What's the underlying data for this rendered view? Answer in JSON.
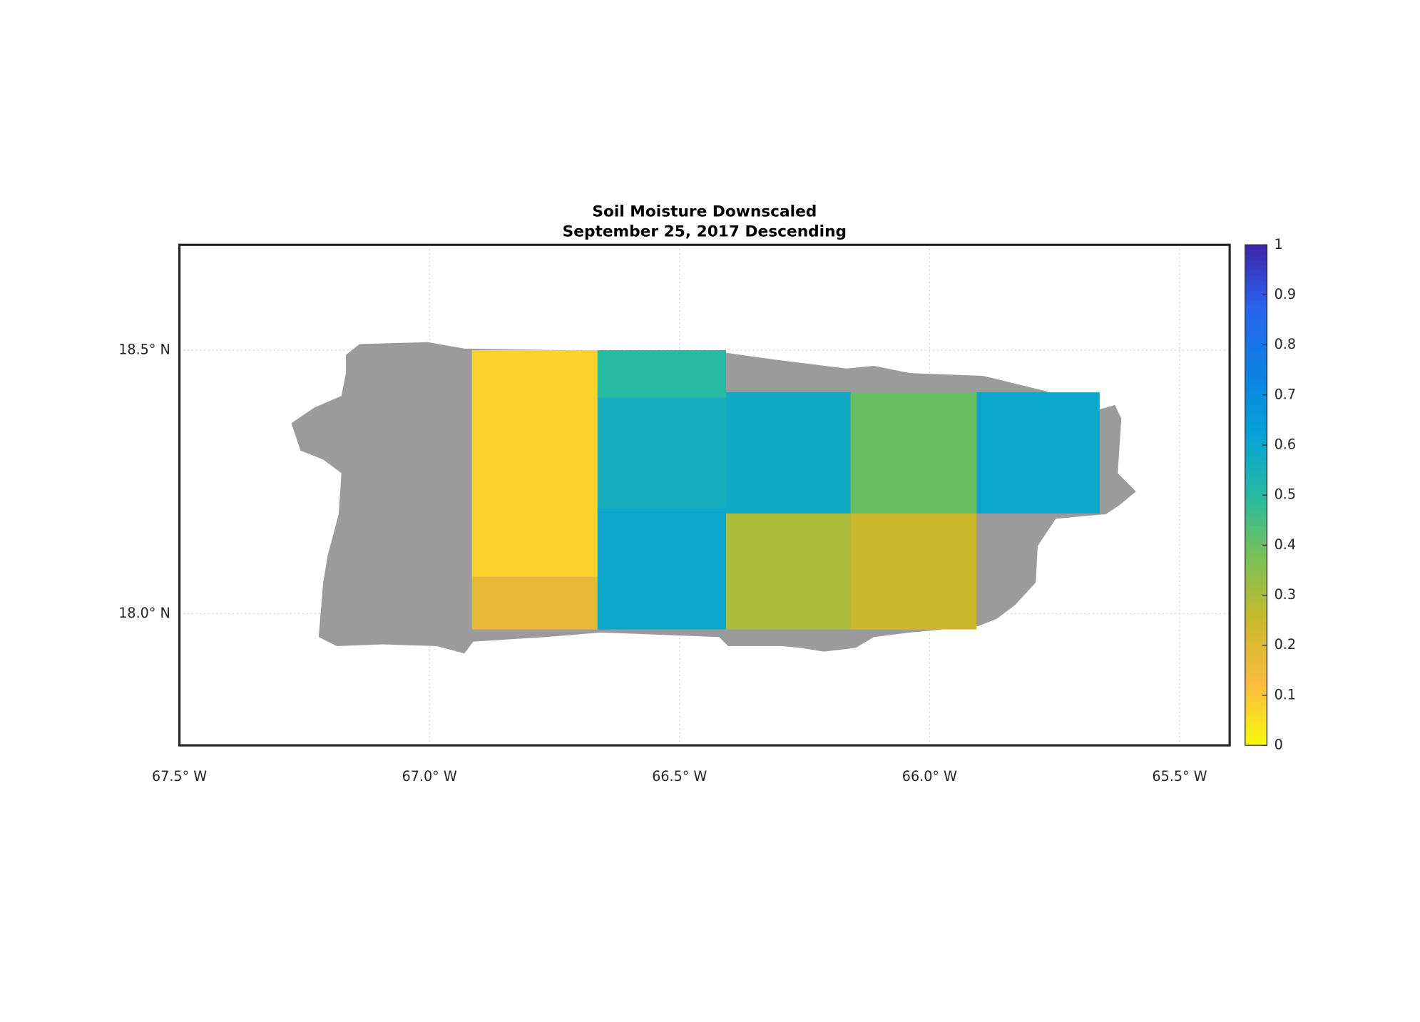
{
  "chart_data": {
    "type": "map",
    "title": "Soil Moisture Downscaled",
    "subtitle": "September 25, 2017 Descending",
    "xlim": [
      -67.5,
      -65.4
    ],
    "ylim": [
      17.75,
      18.7
    ],
    "xticks": [
      {
        "value": -67.5,
        "label": "67.5° W"
      },
      {
        "value": -67.0,
        "label": "67.0° W"
      },
      {
        "value": -66.5,
        "label": "66.5° W"
      },
      {
        "value": -66.0,
        "label": "66.0° W"
      },
      {
        "value": -65.5,
        "label": "65.5° W"
      }
    ],
    "yticks": [
      {
        "value": 18.0,
        "label": "18.0° N"
      },
      {
        "value": 18.5,
        "label": "18.5° N"
      }
    ],
    "grid": true,
    "colormap": "parula",
    "clim": [
      0,
      1
    ],
    "cticks": [
      0,
      0.1,
      0.2,
      0.3,
      0.4,
      0.5,
      0.6,
      0.7,
      0.8,
      0.9,
      1
    ],
    "cells": [
      {
        "lon": [
          -66.915,
          -66.664
        ],
        "lat": [
          18.07,
          18.5
        ],
        "value": 0.08
      },
      {
        "lon": [
          -66.915,
          -66.664
        ],
        "lat": [
          17.97,
          18.07
        ],
        "value": 0.18
      },
      {
        "lon": [
          -66.664,
          -66.407
        ],
        "lat": [
          18.41,
          18.5
        ],
        "value": 0.5
      },
      {
        "lon": [
          -66.664,
          -66.407
        ],
        "lat": [
          18.2,
          18.41
        ],
        "value": 0.56
      },
      {
        "lon": [
          -66.664,
          -66.407
        ],
        "lat": [
          17.97,
          18.2
        ],
        "value": 0.6
      },
      {
        "lon": [
          -66.407,
          -66.158
        ],
        "lat": [
          18.19,
          18.42
        ],
        "value": 0.58
      },
      {
        "lon": [
          -66.158,
          -65.906
        ],
        "lat": [
          18.19,
          18.42
        ],
        "value": 0.4
      },
      {
        "lon": [
          -65.906,
          -65.66
        ],
        "lat": [
          18.19,
          18.42
        ],
        "value": 0.6
      },
      {
        "lon": [
          -66.407,
          -66.158
        ],
        "lat": [
          17.97,
          18.19
        ],
        "value": 0.3
      },
      {
        "lon": [
          -66.158,
          -65.906
        ],
        "lat": [
          17.97,
          18.19
        ],
        "value": 0.25
      }
    ]
  }
}
